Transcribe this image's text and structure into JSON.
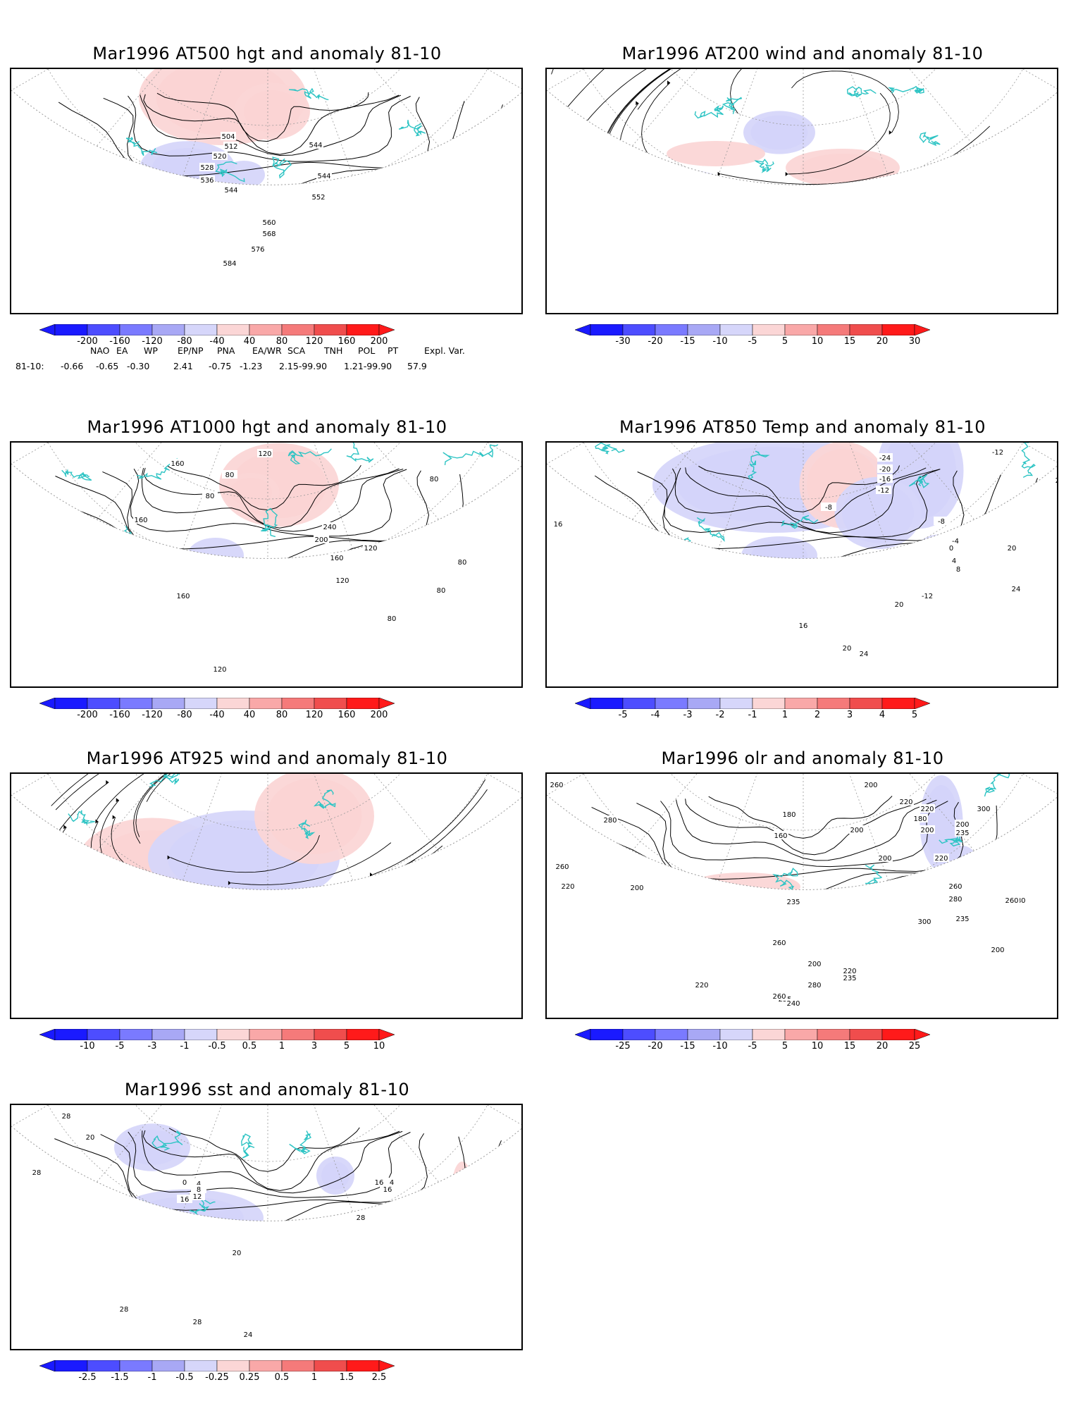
{
  "panels": [
    {
      "id": "p500",
      "title": "Mar1996 AT500 hgt and anomaly 81-10",
      "kind": "contour",
      "contour_labels": [
        "504",
        "512",
        "520",
        "528",
        "536",
        "544",
        "544",
        "544",
        "552",
        "560",
        "568",
        "576",
        "584"
      ],
      "colorbar_ticks": [
        "-200",
        "-160",
        "-120",
        "-80",
        "-40",
        "40",
        "80",
        "120",
        "160",
        "200"
      ]
    },
    {
      "id": "p200",
      "title": "Mar1996 AT200 wind and anomaly 81-10",
      "kind": "streamline",
      "contour_labels": [],
      "colorbar_ticks": [
        "-30",
        "-20",
        "-15",
        "-10",
        "-5",
        "5",
        "10",
        "15",
        "20",
        "30"
      ]
    },
    {
      "id": "p1000",
      "title": "Mar1996 AT1000 hgt and anomaly 81-10",
      "kind": "contour",
      "contour_labels": [
        "160",
        "120",
        "80",
        "80",
        "240",
        "200",
        "160",
        "120",
        "80",
        "160",
        "160",
        "120",
        "120",
        "80",
        "80",
        "80"
      ],
      "colorbar_ticks": [
        "-200",
        "-160",
        "-120",
        "-80",
        "-40",
        "40",
        "80",
        "120",
        "160",
        "200"
      ]
    },
    {
      "id": "p850",
      "title": "Mar1996 AT850 Temp and anomaly 81-10",
      "kind": "contour",
      "contour_labels": [
        "-24",
        "-20",
        "-16",
        "-12",
        "-8",
        "-12",
        "-8",
        "-4",
        "0",
        "4",
        "8",
        "-12",
        "20",
        "20",
        "24",
        "20",
        "24",
        "16",
        "20",
        "16"
      ],
      "colorbar_ticks": [
        "-5",
        "-4",
        "-3",
        "-2",
        "-1",
        "1",
        "2",
        "3",
        "4",
        "5"
      ]
    },
    {
      "id": "p925",
      "title": "Mar1996 AT925 wind and anomaly 81-10",
      "kind": "streamline",
      "contour_labels": [],
      "colorbar_ticks": [
        "-10",
        "-5",
        "-3",
        "-1",
        "-0.5",
        "0.5",
        "1",
        "3",
        "5",
        "10"
      ]
    },
    {
      "id": "polr",
      "title": "Mar1996 olr and anomaly 81-10",
      "kind": "contour",
      "contour_labels": [
        "260",
        "280",
        "260",
        "220",
        "200",
        "180",
        "160",
        "200",
        "200",
        "220",
        "200",
        "180",
        "200",
        "220",
        "235",
        "300",
        "200",
        "220",
        "260",
        "280",
        "300",
        "235",
        "280",
        "260",
        "235",
        "200",
        "260",
        "200",
        "220",
        "280",
        "235",
        "220",
        "235",
        "240",
        "260"
      ],
      "colorbar_ticks": [
        "-25",
        "-20",
        "-15",
        "-10",
        "-5",
        "5",
        "10",
        "15",
        "20",
        "25"
      ]
    },
    {
      "id": "psst",
      "title": "Mar1996 sst and anomaly 81-10",
      "kind": "contour",
      "contour_labels": [
        "28",
        "20",
        "28",
        "0",
        "4",
        "8",
        "12",
        "16",
        "4",
        "16",
        "16",
        "20",
        "24",
        "28",
        "28",
        "28"
      ],
      "colorbar_ticks": [
        "-2.5",
        "-1.5",
        "-1",
        "-0.5",
        "-0.25",
        "0.25",
        "0.5",
        "1",
        "1.5",
        "2.5"
      ]
    }
  ],
  "teleconnections": {
    "headers": [
      "NAO",
      "EA",
      "WP",
      "EP/NP",
      "PNA",
      "EA/WR",
      "SCA",
      "TNH",
      "POL",
      "PT",
      "Expl. Var."
    ],
    "row_label": "81-10:",
    "values": [
      "-0.66",
      "-0.65",
      "-0.30",
      "2.41",
      "-0.75",
      "-1.23",
      "2.15-99.90",
      "1.21-99.90",
      "57.9"
    ]
  },
  "colors": {
    "coastline": "#2ec4c4",
    "contour": "#000000",
    "grid": "#999999",
    "scale": [
      "#1a1aff",
      "#4d4dff",
      "#7a7aff",
      "#a8a8f5",
      "#d6d6fa",
      "#ffffff",
      "#fbd6d6",
      "#f9a8a8",
      "#f57a7a",
      "#f04d4d",
      "#ff1a1a"
    ]
  }
}
